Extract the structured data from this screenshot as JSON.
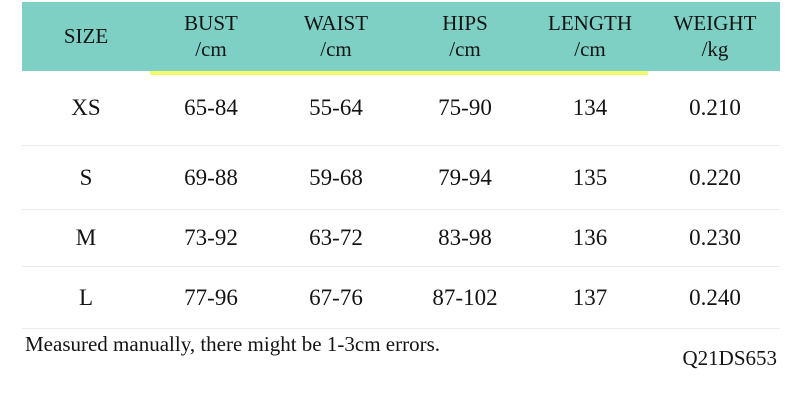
{
  "chart_data": {
    "type": "table",
    "columns": [
      {
        "label": "SIZE",
        "unit": ""
      },
      {
        "label": "BUST",
        "unit": "/cm"
      },
      {
        "label": "WAIST",
        "unit": "/cm"
      },
      {
        "label": "HIPS",
        "unit": "/cm"
      },
      {
        "label": "LENGTH",
        "unit": "/cm"
      },
      {
        "label": "WEIGHT",
        "unit": "/kg"
      }
    ],
    "rows": [
      [
        "XS",
        "65-84",
        "55-64",
        "75-90",
        "134",
        "0.210"
      ],
      [
        "S",
        "69-88",
        "59-68",
        "79-94",
        "135",
        "0.220"
      ],
      [
        "M",
        "73-92",
        "63-72",
        "83-98",
        "136",
        "0.230"
      ],
      [
        "L",
        "77-96",
        "67-76",
        "87-102",
        "137",
        "0.240"
      ]
    ]
  },
  "footer": {
    "note": "Measured manually, there might be 1-3cm errors.",
    "code": "Q21DS653"
  },
  "colors": {
    "header_bg": "#7ecfc4",
    "accent_underline": "#f1fa6d",
    "text": "#141414",
    "divider": "#ebebeb"
  }
}
